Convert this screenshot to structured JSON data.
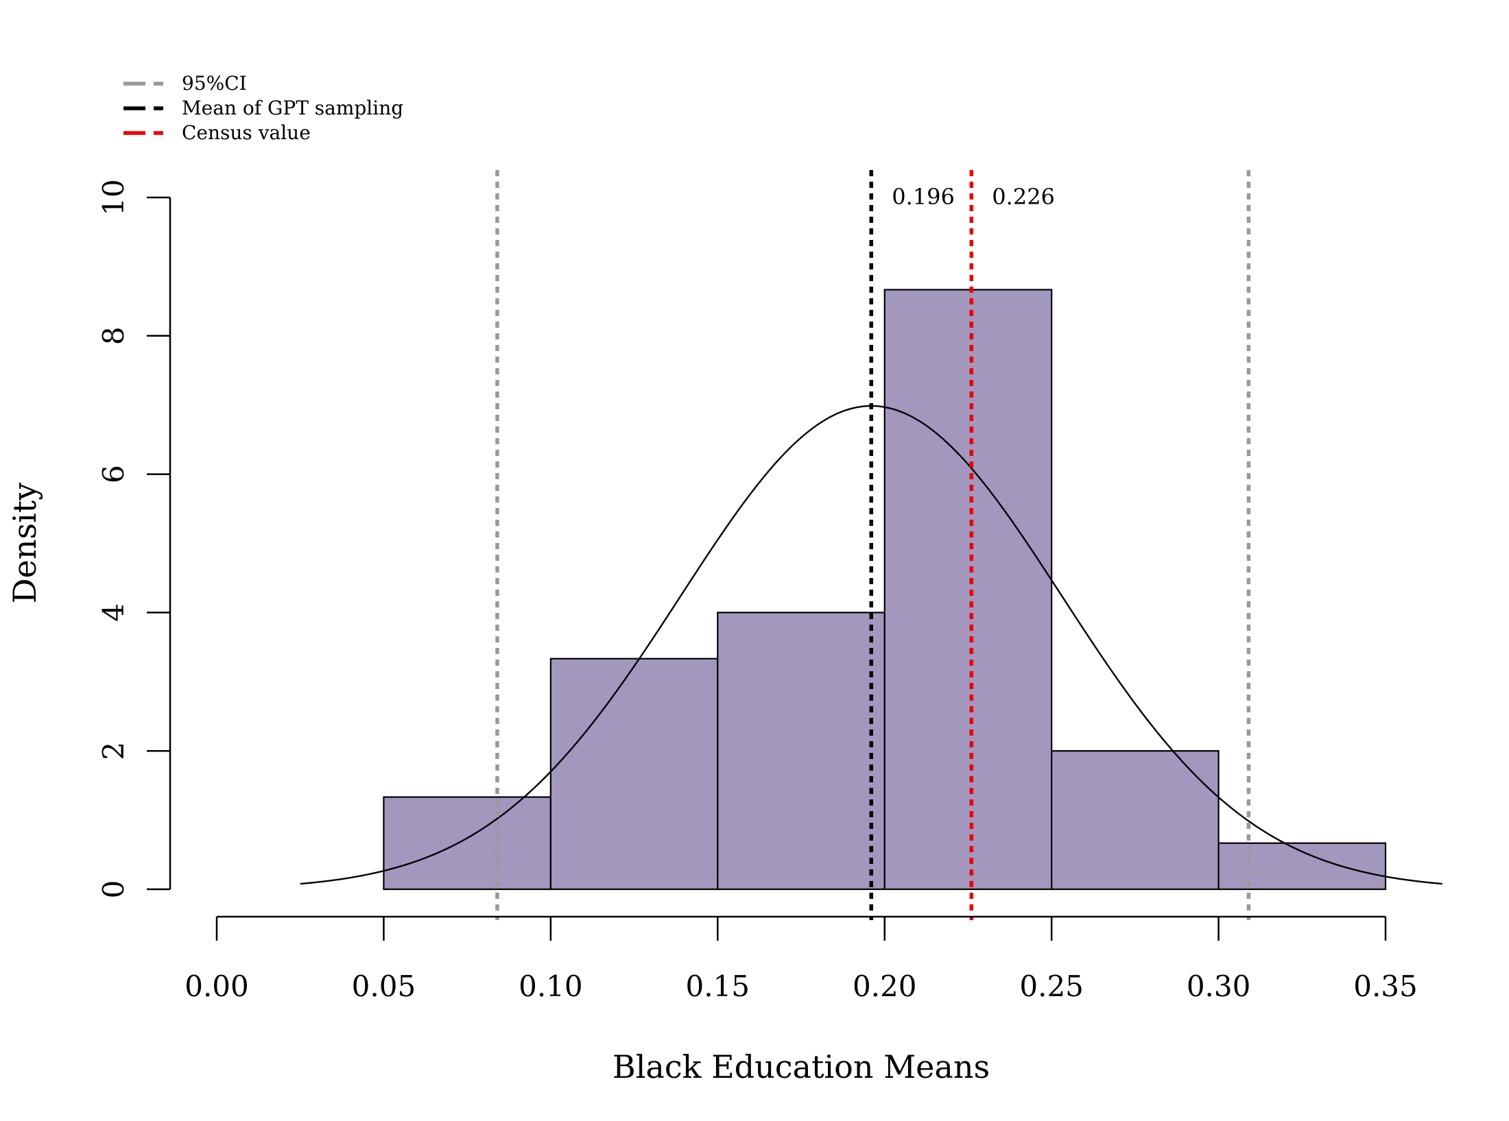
{
  "chart_data": {
    "type": "bar",
    "title": "",
    "xlabel": "Black Education Means",
    "ylabel": "Density",
    "xlim": [
      0.0,
      0.35
    ],
    "ylim": [
      0,
      10
    ],
    "x_ticks": [
      "0.00",
      "0.05",
      "0.10",
      "0.15",
      "0.20",
      "0.25",
      "0.30",
      "0.35"
    ],
    "x_tick_values": [
      0.0,
      0.05,
      0.1,
      0.15,
      0.2,
      0.25,
      0.3,
      0.35
    ],
    "y_ticks": [
      "0",
      "2",
      "4",
      "6",
      "8",
      "10"
    ],
    "y_tick_values": [
      0,
      2,
      4,
      6,
      8,
      10
    ],
    "bins": [
      {
        "from": 0.05,
        "to": 0.1,
        "density": 1.333
      },
      {
        "from": 0.1,
        "to": 0.15,
        "density": 3.333
      },
      {
        "from": 0.15,
        "to": 0.2,
        "density": 4.0
      },
      {
        "from": 0.2,
        "to": 0.25,
        "density": 8.667
      },
      {
        "from": 0.25,
        "to": 0.3,
        "density": 2.0
      },
      {
        "from": 0.3,
        "to": 0.35,
        "density": 0.667
      }
    ],
    "bar_color": "#a397be",
    "normal_curve": {
      "mean": 0.196,
      "sd": 0.0571,
      "x_from": 0.025,
      "x_to": 0.367
    },
    "vlines": [
      {
        "name": "ci-lower",
        "x": 0.084,
        "color": "#999999",
        "label": ""
      },
      {
        "name": "ci-upper",
        "x": 0.309,
        "color": "#999999",
        "label": ""
      },
      {
        "name": "gpt-mean",
        "x": 0.196,
        "color": "#000000",
        "label": "0.196"
      },
      {
        "name": "census",
        "x": 0.226,
        "color": "#ee0000",
        "label": "0.226"
      }
    ],
    "legend": [
      {
        "label": "95%CI",
        "color": "#999999"
      },
      {
        "label": "Mean of GPT sampling",
        "color": "#000000"
      },
      {
        "label": "Census value",
        "color": "#ee0000"
      }
    ],
    "legend_position": "top-left"
  }
}
